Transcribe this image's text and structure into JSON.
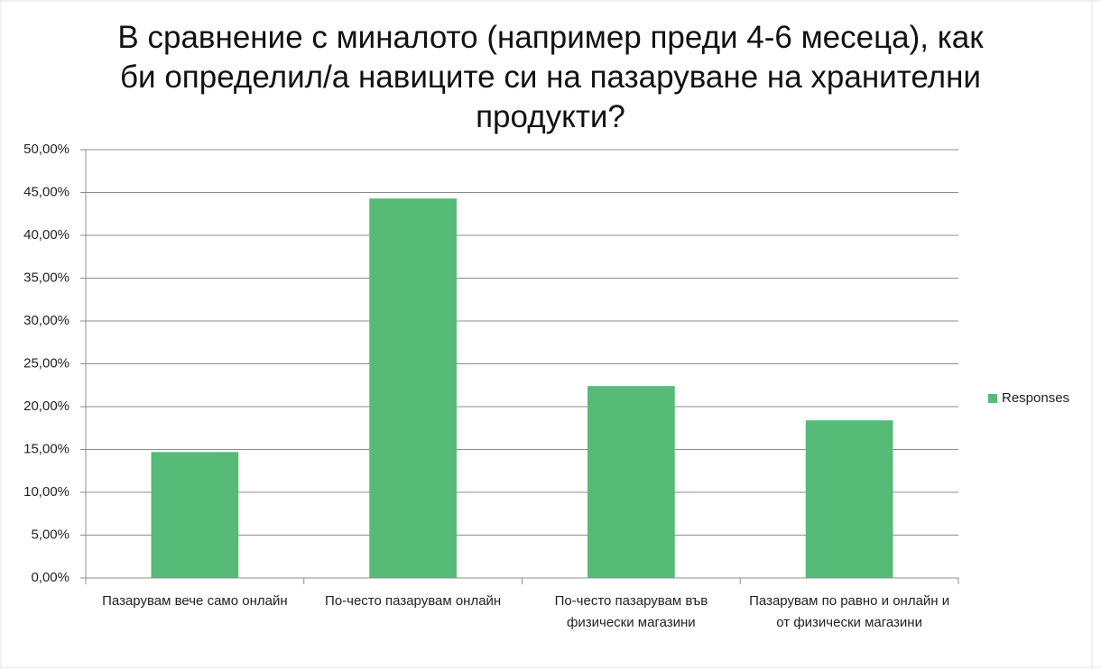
{
  "chart_data": {
    "type": "bar",
    "title": "В сравнение с миналото (например преди 4-6 месеца), как би определил/а навиците си на пазаруване на хранителни продукти?",
    "categories": [
      "Пазарувам вече само онлайн",
      "По-често пазарувам онлайн",
      "По-често пазарувам във физически магазини",
      "Пазарувам по равно и онлайн и от физически магазини"
    ],
    "series": [
      {
        "name": "Responses",
        "color": "#55bb77",
        "values": [
          14.7,
          44.3,
          22.4,
          18.4
        ]
      }
    ],
    "ylim": [
      0,
      50
    ],
    "yticks": [
      {
        "value": 0,
        "label": "0,00%"
      },
      {
        "value": 5,
        "label": "5,00%"
      },
      {
        "value": 10,
        "label": "10,00%"
      },
      {
        "value": 15,
        "label": "15,00%"
      },
      {
        "value": 20,
        "label": "20,00%"
      },
      {
        "value": 25,
        "label": "25,00%"
      },
      {
        "value": 30,
        "label": "30,00%"
      },
      {
        "value": 35,
        "label": "35,00%"
      },
      {
        "value": 40,
        "label": "40,00%"
      },
      {
        "value": 45,
        "label": "45,00%"
      },
      {
        "value": 50,
        "label": "50,00%"
      }
    ],
    "grid": true,
    "legend": "right"
  }
}
